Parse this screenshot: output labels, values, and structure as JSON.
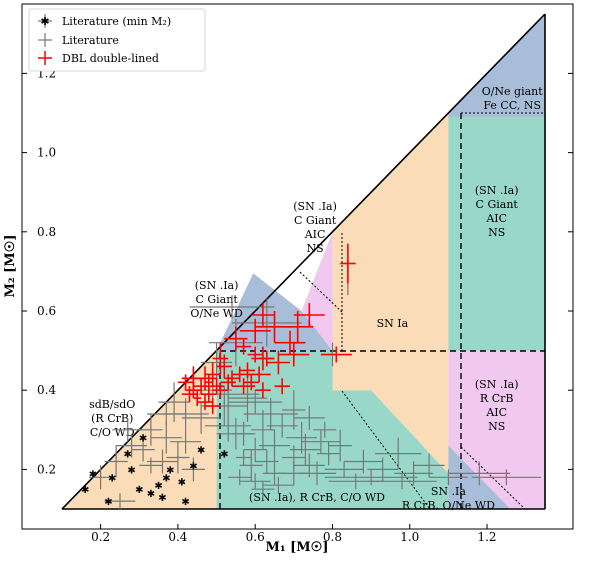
{
  "chart_data": {
    "type": "scatter",
    "xlabel": "M₁ [M☉]",
    "ylabel": "M₂ [M☉]",
    "xlim": [
      0.1,
      1.35
    ],
    "ylim": [
      0.1,
      1.35
    ],
    "x_ticks": [
      0.2,
      0.4,
      0.6,
      0.8,
      1.0,
      1.2
    ],
    "x_tick_labels": [
      "0.2",
      "0.4",
      "0.6",
      "0.8",
      "1.0",
      "1.2"
    ],
    "y_ticks": [
      0.2,
      0.4,
      0.6,
      0.8,
      1.0,
      1.2
    ],
    "y_tick_labels": [
      "0.2",
      "0.4",
      "0.6",
      "0.8",
      "1.0",
      "1.2"
    ],
    "grid": false,
    "legend_position": "top-left",
    "legend": [
      {
        "label": "Literature (min M₂)",
        "marker": "star",
        "color": "#777777"
      },
      {
        "label": "Literature",
        "marker": "errorbar",
        "color": "#777777"
      },
      {
        "label": "DBL double-lined",
        "marker": "errorbar",
        "color": "#ff0000"
      }
    ],
    "regions": [
      {
        "name": "sdB-sdO",
        "color": "#fbdcb8",
        "polygon": [
          [
            0.1,
            0.1
          ],
          [
            0.5,
            0.1
          ],
          [
            0.5,
            0.5
          ]
        ],
        "lines": [
          "sdB/sdO",
          "(R CrB)",
          "C/O WD"
        ],
        "label_at": [
          0.23,
          0.355
        ]
      },
      {
        "name": "lower-left-teal",
        "color": "#99d8c9",
        "polygon": [
          [
            0.5,
            0.1
          ],
          [
            0.8,
            0.1
          ],
          [
            0.95,
            0.1
          ],
          [
            1.1,
            0.1
          ],
          [
            1.1,
            0.19
          ],
          [
            0.9,
            0.4
          ],
          [
            0.8,
            0.4
          ],
          [
            0.8,
            0.5
          ],
          [
            0.5,
            0.5
          ]
        ],
        "lines": [
          "(SN .Ia), R CrB, C/O WD"
        ],
        "label_at": [
          0.76,
          0.12
        ]
      },
      {
        "name": "mid-blue",
        "color": "#a8bdd8",
        "polygon": [
          [
            0.5,
            0.5
          ],
          [
            0.8,
            0.5
          ],
          [
            0.72,
            0.6
          ],
          [
            0.595,
            0.695
          ]
        ],
        "lines": [
          "(SN .Ia)",
          "C Giant",
          "O/Ne WD"
        ],
        "label_at": [
          0.5,
          0.655
        ]
      },
      {
        "name": "mid-pink",
        "color": "#f0c8f0",
        "polygon": [
          [
            0.72,
            0.6
          ],
          [
            0.8,
            0.5
          ],
          [
            0.8,
            0.8
          ]
        ],
        "lines": [
          "(SN .Ia)",
          "C Giant",
          "AIC",
          "NS"
        ],
        "label_at": [
          0.755,
          0.855
        ]
      },
      {
        "name": "sn-ia",
        "color": "#fbdcb8",
        "polygon": [
          [
            0.8,
            0.5
          ],
          [
            0.8,
            0.8
          ],
          [
            1.1,
            1.1
          ],
          [
            1.1,
            0.19
          ],
          [
            0.9,
            0.4
          ],
          [
            0.8,
            0.4
          ]
        ],
        "lines": [
          "SN Ia"
        ],
        "label_at": [
          0.955,
          0.56
        ]
      },
      {
        "name": "right-teal",
        "color": "#99d8c9",
        "polygon": [
          [
            1.1,
            0.5
          ],
          [
            1.1,
            1.09
          ],
          [
            1.35,
            1.09
          ],
          [
            1.35,
            0.5
          ]
        ],
        "lines": [
          "(SN .Ia)",
          "C Giant",
          "AIC",
          "NS"
        ],
        "label_at": [
          1.225,
          0.895
        ]
      },
      {
        "name": "top-blue",
        "color": "#a8bdd8",
        "polygon": [
          [
            1.1,
            1.1
          ],
          [
            1.35,
            1.35
          ],
          [
            1.35,
            1.09
          ],
          [
            1.1,
            1.09
          ]
        ],
        "lines": [
          "O/Ne giant",
          "Fe CC, NS"
        ],
        "label_at": [
          1.265,
          1.145
        ]
      },
      {
        "name": "right-pink",
        "color": "#f0c8f0",
        "polygon": [
          [
            1.1,
            0.1
          ],
          [
            1.35,
            0.1
          ],
          [
            1.35,
            0.5
          ],
          [
            1.1,
            0.5
          ]
        ],
        "lines": [
          "(SN .Ia)",
          "R CrB",
          "AIC",
          "NS"
        ],
        "label_at": [
          1.225,
          0.405
        ]
      },
      {
        "name": "right-small-blue",
        "color": "#a8bdd8",
        "polygon": [
          [
            1.1,
            0.1
          ],
          [
            1.26,
            0.1
          ],
          [
            1.1,
            0.26
          ]
        ],
        "lines": [
          "SN .Ia",
          "R CrB, O/Ne WD"
        ],
        "label_at": [
          1.1,
          0.135
        ]
      }
    ],
    "series": [
      {
        "name": "DBL double-lined",
        "color": "#ff0000",
        "points": [
          [
            0.84,
            0.72,
            0.02,
            0.05
          ],
          [
            0.74,
            0.59,
            0.04,
            0.03
          ],
          [
            0.71,
            0.56,
            0.04,
            0.04
          ],
          [
            0.62,
            0.59,
            0.03,
            0.03
          ],
          [
            0.65,
            0.56,
            0.05,
            0.04
          ],
          [
            0.69,
            0.52,
            0.04,
            0.03
          ],
          [
            0.6,
            0.55,
            0.04,
            0.03
          ],
          [
            0.55,
            0.53,
            0.03,
            0.03
          ],
          [
            0.57,
            0.51,
            0.02,
            0.02
          ],
          [
            0.66,
            0.47,
            0.03,
            0.03
          ],
          [
            0.62,
            0.48,
            0.03,
            0.03
          ],
          [
            0.6,
            0.49,
            0.02,
            0.02
          ],
          [
            0.7,
            0.49,
            0.04,
            0.03
          ],
          [
            0.81,
            0.49,
            0.04,
            0.02
          ],
          [
            0.51,
            0.48,
            0.02,
            0.04
          ],
          [
            0.52,
            0.46,
            0.02,
            0.03
          ],
          [
            0.58,
            0.45,
            0.02,
            0.02
          ],
          [
            0.61,
            0.44,
            0.03,
            0.02
          ],
          [
            0.67,
            0.41,
            0.02,
            0.02
          ],
          [
            0.62,
            0.4,
            0.02,
            0.02
          ],
          [
            0.57,
            0.41,
            0.03,
            0.02
          ],
          [
            0.53,
            0.42,
            0.02,
            0.02
          ],
          [
            0.54,
            0.43,
            0.02,
            0.02
          ],
          [
            0.49,
            0.44,
            0.02,
            0.03
          ],
          [
            0.47,
            0.43,
            0.03,
            0.03
          ],
          [
            0.44,
            0.43,
            0.03,
            0.03
          ],
          [
            0.42,
            0.42,
            0.02,
            0.02
          ],
          [
            0.46,
            0.41,
            0.02,
            0.02
          ],
          [
            0.44,
            0.4,
            0.02,
            0.02
          ],
          [
            0.43,
            0.39,
            0.02,
            0.02
          ],
          [
            0.48,
            0.39,
            0.02,
            0.02
          ],
          [
            0.47,
            0.37,
            0.02,
            0.02
          ],
          [
            0.49,
            0.36,
            0.02,
            0.02
          ],
          [
            0.5,
            0.41,
            0.02,
            0.02
          ],
          [
            0.51,
            0.4,
            0.02,
            0.02
          ],
          [
            0.48,
            0.42,
            0.01,
            0.02
          ],
          [
            0.45,
            0.38,
            0.01,
            0.02
          ],
          [
            0.59,
            0.42,
            0.02,
            0.02
          ],
          [
            0.56,
            0.44,
            0.02,
            0.02
          ],
          [
            0.63,
            0.48,
            0.02,
            0.02
          ]
        ]
      },
      {
        "name": "Literature",
        "color": "#777777",
        "points": [
          [
            0.84,
            0.69,
            0.0,
            0.05
          ],
          [
            0.54,
            0.61,
            0.11,
            0.03
          ],
          [
            0.63,
            0.57,
            0.09,
            0.06
          ],
          [
            0.55,
            0.52,
            0.07,
            0.06
          ],
          [
            0.5,
            0.47,
            0.04,
            0.05
          ],
          [
            0.49,
            0.4,
            0.05,
            0.04
          ],
          [
            0.53,
            0.39,
            0.08,
            0.04
          ],
          [
            0.52,
            0.36,
            0.06,
            0.05
          ],
          [
            0.58,
            0.38,
            0.05,
            0.06
          ],
          [
            0.6,
            0.37,
            0.07,
            0.03
          ],
          [
            0.64,
            0.34,
            0.07,
            0.04
          ],
          [
            0.42,
            0.34,
            0.06,
            0.04
          ],
          [
            0.46,
            0.33,
            0.05,
            0.04
          ],
          [
            0.39,
            0.37,
            0.04,
            0.05
          ],
          [
            0.37,
            0.34,
            0.05,
            0.03
          ],
          [
            0.53,
            0.31,
            0.06,
            0.04
          ],
          [
            0.55,
            0.29,
            0.05,
            0.04
          ],
          [
            0.62,
            0.3,
            0.03,
            0.05
          ],
          [
            0.7,
            0.35,
            0.03,
            0.05
          ],
          [
            0.74,
            0.33,
            0.04,
            0.03
          ],
          [
            0.72,
            0.28,
            0.04,
            0.04
          ],
          [
            0.77,
            0.27,
            0.05,
            0.03
          ],
          [
            0.82,
            0.26,
            0.03,
            0.04
          ],
          [
            0.73,
            0.25,
            0.04,
            0.04
          ],
          [
            0.7,
            0.23,
            0.03,
            0.03
          ],
          [
            0.74,
            0.21,
            0.04,
            0.03
          ],
          [
            0.79,
            0.24,
            0.03,
            0.03
          ],
          [
            0.65,
            0.26,
            0.04,
            0.04
          ],
          [
            0.63,
            0.22,
            0.03,
            0.03
          ],
          [
            0.59,
            0.21,
            0.03,
            0.04
          ],
          [
            0.57,
            0.23,
            0.02,
            0.02
          ],
          [
            0.6,
            0.25,
            0.03,
            0.03
          ],
          [
            0.65,
            0.19,
            0.03,
            0.03
          ],
          [
            0.7,
            0.19,
            0.04,
            0.03
          ],
          [
            0.76,
            0.19,
            0.05,
            0.03
          ],
          [
            0.83,
            0.2,
            0.05,
            0.02
          ],
          [
            0.88,
            0.22,
            0.05,
            0.03
          ],
          [
            0.93,
            0.2,
            0.04,
            0.03
          ],
          [
            0.97,
            0.24,
            0.06,
            0.04
          ],
          [
            1.01,
            0.19,
            0.05,
            0.03
          ],
          [
            1.05,
            0.21,
            0.04,
            0.03
          ],
          [
            1.1,
            0.18,
            0.05,
            0.02
          ],
          [
            1.18,
            0.19,
            0.08,
            0.03
          ],
          [
            1.25,
            0.18,
            0.09,
            0.02
          ],
          [
            0.98,
            0.17,
            0.09,
            0.02
          ],
          [
            0.86,
            0.17,
            0.07,
            0.02
          ],
          [
            0.9,
            0.18,
            0.12,
            0.02
          ],
          [
            0.6,
            0.17,
            0.04,
            0.02
          ],
          [
            0.56,
            0.18,
            0.03,
            0.02
          ],
          [
            0.66,
            0.16,
            0.04,
            0.02
          ],
          [
            0.62,
            0.15,
            0.03,
            0.02
          ],
          [
            0.37,
            0.28,
            0.04,
            0.04
          ],
          [
            0.33,
            0.3,
            0.03,
            0.04
          ],
          [
            0.28,
            0.26,
            0.04,
            0.03
          ],
          [
            0.24,
            0.22,
            0.03,
            0.04
          ],
          [
            0.27,
            0.3,
            0.04,
            0.03
          ],
          [
            0.36,
            0.22,
            0.04,
            0.03
          ],
          [
            0.4,
            0.23,
            0.03,
            0.04
          ],
          [
            0.42,
            0.27,
            0.04,
            0.03
          ],
          [
            0.44,
            0.2,
            0.03,
            0.03
          ],
          [
            0.33,
            0.21,
            0.03,
            0.02
          ],
          [
            0.31,
            0.25,
            0.03,
            0.03
          ],
          [
            0.25,
            0.12,
            0.04,
            0.02
          ],
          [
            0.2,
            0.18,
            0.03,
            0.03
          ],
          [
            0.57,
            0.29,
            0.03,
            0.03
          ],
          [
            0.8,
            0.49,
            0.0,
            0.03
          ],
          [
            0.78,
            0.3,
            0.03,
            0.02
          ],
          [
            0.67,
            0.31,
            0.04,
            0.03
          ]
        ]
      },
      {
        "name": "Literature (min M₂)",
        "color": "#777777",
        "points": [
          [
            0.16,
            0.15,
            0.0,
            0.0
          ],
          [
            0.18,
            0.19,
            0.0,
            0.0
          ],
          [
            0.22,
            0.12,
            0.0,
            0.0
          ],
          [
            0.23,
            0.18,
            0.0,
            0.0
          ],
          [
            0.27,
            0.24,
            0.0,
            0.0
          ],
          [
            0.28,
            0.2,
            0.0,
            0.0
          ],
          [
            0.3,
            0.15,
            0.0,
            0.0
          ],
          [
            0.33,
            0.14,
            0.0,
            0.0
          ],
          [
            0.35,
            0.16,
            0.0,
            0.0
          ],
          [
            0.37,
            0.18,
            0.0,
            0.0
          ],
          [
            0.38,
            0.2,
            0.0,
            0.0
          ],
          [
            0.41,
            0.17,
            0.0,
            0.0
          ],
          [
            0.42,
            0.12,
            0.0,
            0.0
          ],
          [
            0.44,
            0.21,
            0.0,
            0.0
          ],
          [
            0.36,
            0.13,
            0.0,
            0.0
          ],
          [
            0.46,
            0.25,
            0.0,
            0.0
          ],
          [
            0.52,
            0.24,
            0.0,
            0.0
          ],
          [
            0.31,
            0.28,
            0.0,
            0.0
          ]
        ]
      }
    ]
  }
}
